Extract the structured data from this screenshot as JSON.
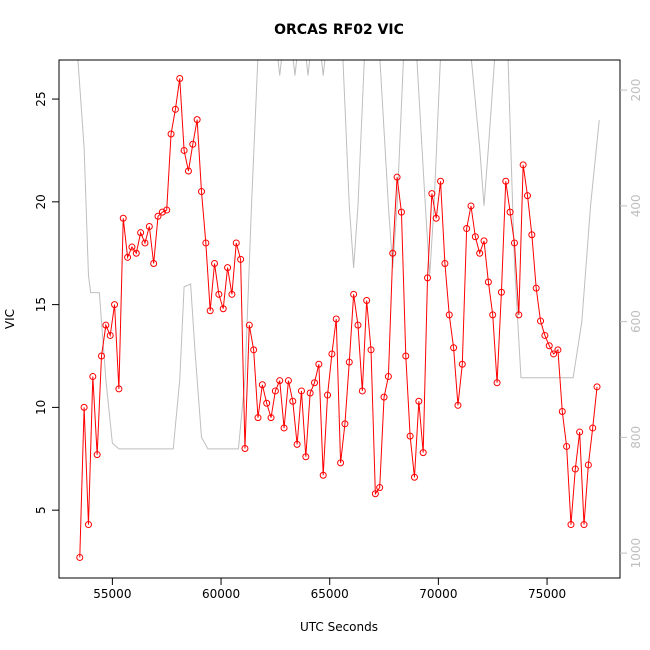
{
  "chart_data": {
    "type": "line",
    "title": "ORCAS RF02 VIC",
    "x_label": "UTC Seconds",
    "y_label": "VIC",
    "xlim": [
      52544,
      78356
    ],
    "xticks": [
      55000,
      60000,
      65000,
      70000,
      75000
    ],
    "ylim": [
      1.7,
      26.9
    ],
    "yticks": [
      5,
      10,
      15,
      20,
      25
    ],
    "y2lim": [
      1043,
      148
    ],
    "y2ticks": [
      200,
      400,
      600,
      800,
      1000
    ],
    "series": [
      {
        "color": "#ff0000",
        "marker": "circle",
        "x": [
          53500,
          53700,
          53900,
          54100,
          54300,
          54500,
          54700,
          54900,
          55100,
          55300,
          55500,
          55700,
          55900,
          56100,
          56300,
          56500,
          56700,
          56900,
          57100,
          57300,
          57500,
          57700,
          57900,
          58100,
          58300,
          58500,
          58700,
          58900,
          59100,
          59300,
          59500,
          59700,
          59900,
          60100,
          60300,
          60500,
          60700,
          60900,
          61100,
          61300,
          61500,
          61700,
          61900,
          62100,
          62300,
          62500,
          62700,
          62900,
          63100,
          63300,
          63500,
          63700,
          63900,
          64100,
          64300,
          64500,
          64700,
          64900,
          65100,
          65300,
          65500,
          65700,
          65900,
          66100,
          66300,
          66500,
          66700,
          66900,
          67100,
          67300,
          67500,
          67700,
          67900,
          68100,
          68300,
          68500,
          68700,
          68900,
          69100,
          69300,
          69500,
          69700,
          69900,
          70100,
          70300,
          70500,
          70700,
          70900,
          71100,
          71300,
          71500,
          71700,
          71900,
          72100,
          72300,
          72500,
          72700,
          72900,
          73100,
          73300,
          73500,
          73700,
          73900,
          74100,
          74300,
          74500,
          74700,
          74900,
          75100,
          75300,
          75500,
          75700,
          75900,
          76100,
          76300,
          76500,
          76700,
          76900,
          77100,
          77300
        ],
        "values": [
          2.7,
          10,
          4.3,
          11.5,
          7.7,
          12.5,
          14,
          13.5,
          15,
          10.9,
          19.2,
          17.3,
          17.8,
          17.5,
          18.5,
          18,
          18.8,
          17,
          19.3,
          19.5,
          19.6,
          23.3,
          24.5,
          26,
          22.5,
          21.5,
          22.8,
          24,
          20.5,
          18,
          14.7,
          17,
          15.5,
          14.8,
          16.8,
          15.5,
          18,
          17.2,
          8,
          14,
          12.8,
          9.5,
          11.1,
          10.2,
          9.5,
          10.8,
          11.3,
          9,
          11.3,
          10.3,
          8.2,
          10.8,
          7.6,
          10.7,
          11.2,
          12.1,
          6.7,
          10.6,
          12.6,
          14.3,
          7.3,
          9.2,
          12.2,
          15.5,
          14,
          10.8,
          15.2,
          12.8,
          5.8,
          6.1,
          10.5,
          11.5,
          17.5,
          21.2,
          19.5,
          12.5,
          8.6,
          6.6,
          10.3,
          7.8,
          16.3,
          20.4,
          19.2,
          21,
          17,
          14.5,
          12.9,
          10.1,
          12.1,
          18.7,
          19.8,
          18.3,
          17.5,
          18.1,
          16.1,
          14.5,
          11.2,
          15.6,
          21,
          19.5,
          18,
          14.5,
          21.8,
          20.3,
          18.4,
          15.8,
          14.2,
          13.5,
          13,
          12.6,
          12.8,
          9.8,
          8.1,
          4.3,
          7,
          8.8,
          4.3,
          7.2,
          9,
          11
        ]
      },
      {
        "color": "#bebebe",
        "axis": "y2",
        "x": [
          53400,
          53700,
          53900,
          54000,
          54400,
          54700,
          55000,
          55300,
          57800,
          58100,
          58300,
          58600,
          58800,
          59100,
          59400,
          60800,
          61100,
          61400,
          61700,
          62600,
          62700,
          62800,
          63300,
          63400,
          63500,
          63900,
          64000,
          64100,
          64600,
          64700,
          64800,
          65600,
          65900,
          66100,
          66300,
          66600,
          67300,
          67700,
          67900,
          68100,
          68400,
          69000,
          69400,
          69600,
          69800,
          70100,
          71500,
          71900,
          72100,
          72300,
          72600,
          73200,
          73500,
          73800,
          76200,
          76600,
          77000,
          77400
        ],
        "values": [
          140,
          300,
          520,
          550,
          550,
          700,
          810,
          820,
          820,
          700,
          540,
          535,
          650,
          800,
          820,
          820,
          700,
          400,
          140,
          140,
          175,
          140,
          140,
          175,
          140,
          140,
          175,
          140,
          140,
          175,
          140,
          140,
          400,
          507,
          400,
          140,
          140,
          400,
          507,
          400,
          140,
          140,
          400,
          520,
          400,
          140,
          140,
          300,
          400,
          300,
          140,
          140,
          500,
          697,
          697,
          600,
          400,
          252
        ]
      }
    ]
  }
}
